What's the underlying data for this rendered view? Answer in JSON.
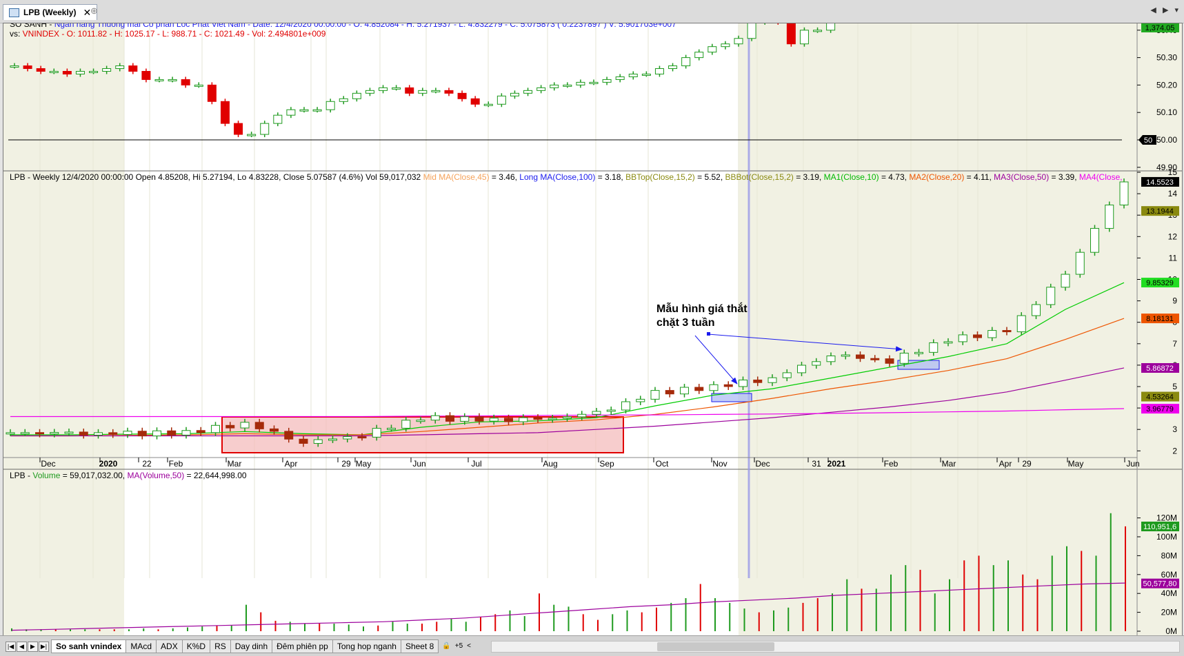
{
  "app": {
    "tab_title": "LPB (Weekly)",
    "tab_close": "✕",
    "pin_glyph": "⊕",
    "nav_left": "◀",
    "nav_right": "▶",
    "nav_menu": "▾"
  },
  "top_panel": {
    "line1_prefix": "SO SANH - ",
    "line1_rest": "Ngan hang Thuong mai Co phan Loc Phat Viet Nam - Date: 12/4/2020 00:00:00 - O: 4.852084 - H: 5.271937 - L: 4.832279 - C: 5.075873 ( 0.2237897 ) V: 5.901703e+007",
    "line2_prefix": "vs: ",
    "line2_rest": "VNINDEX - O: 1011.82 - H: 1025.17 - L: 988.71 - C: 1021.49 - Vol: 2.494801e+009",
    "axis_ticks": [
      "50.40",
      "50.30",
      "50.20",
      "50.10",
      "50.00",
      "49.90"
    ],
    "badge_last": "1,374.05",
    "badge_ref": "50",
    "colors": {
      "up": "#1e9a1e",
      "down": "#e00000",
      "label_blue": "#1a1aee",
      "label_red": "#e00000"
    }
  },
  "price_panel": {
    "legend": [
      {
        "text": "LPB - Weekly 12/4/2020 00:00:00 Open 4.85208, Hi 5.27194, Lo 4.83228, Close 5.07587 (4.6%) Vol 59,017,032 ",
        "color": "#000000"
      },
      {
        "text": "Mid MA(Close,45)",
        "color": "#f5a25a"
      },
      {
        "text": " = 3.46, ",
        "color": "#000000"
      },
      {
        "text": "Long MA(Close,100)",
        "color": "#1a1aee"
      },
      {
        "text": " = 3.18, ",
        "color": "#000000"
      },
      {
        "text": "BBTop(Close,15,2)",
        "color": "#8a8a10"
      },
      {
        "text": " = 5.52, ",
        "color": "#000000"
      },
      {
        "text": "BBBot(Close,15,2)",
        "color": "#8a8a10"
      },
      {
        "text": " = 3.19, ",
        "color": "#000000"
      },
      {
        "text": "MA1(Close,10)",
        "color": "#00b800"
      },
      {
        "text": " = 4.73, ",
        "color": "#000000"
      },
      {
        "text": "MA2(Close,20)",
        "color": "#ee5500"
      },
      {
        "text": " = 4.11, ",
        "color": "#000000"
      },
      {
        "text": "MA3(Close,50)",
        "color": "#9c009c"
      },
      {
        "text": " = 3.39, ",
        "color": "#000000"
      },
      {
        "text": "MA4(Close,",
        "color": "#ee00ee"
      }
    ],
    "axis_ticks": [
      "15",
      "14",
      "13",
      "12",
      "11",
      "10",
      "9",
      "8",
      "7",
      "6",
      "5",
      "4",
      "3",
      "2"
    ],
    "badges": [
      {
        "value": "14.5523",
        "bg": "#000000",
        "fg": "#ffffff",
        "y": 14.5523
      },
      {
        "value": "13.1944",
        "bg": "#8a8a10",
        "fg": "#000000",
        "y": 13.1944
      },
      {
        "value": "9.85329",
        "bg": "#22dd22",
        "fg": "#000000",
        "y": 9.85329
      },
      {
        "value": "8.18131",
        "bg": "#ee5500",
        "fg": "#000000",
        "y": 8.18131
      },
      {
        "value": "5.86872",
        "bg": "#9c009c",
        "fg": "#ffffff",
        "y": 5.86872
      },
      {
        "value": "4.53264",
        "bg": "#8a8a10",
        "fg": "#000000",
        "y": 4.53264
      },
      {
        "value": "3.96779",
        "bg": "#ee00ee",
        "fg": "#000000",
        "y": 3.96779
      }
    ],
    "annotation": [
      "Mẫu hình giá thắt",
      "chặt 3 tuần"
    ],
    "x_labels": [
      "Dec",
      "2020",
      "22",
      "Feb",
      "Mar",
      "Apr",
      "29",
      "May",
      "Jun",
      "Jul",
      "Aug",
      "Sep",
      "Oct",
      "Nov",
      "Dec",
      "31",
      "2021",
      "Feb",
      "Mar",
      "Apr",
      "29",
      "May",
      "Jun"
    ]
  },
  "volume_panel": {
    "legend": [
      {
        "text": "LPB - ",
        "color": "#000000"
      },
      {
        "text": "Volume",
        "color": "#1e9a1e"
      },
      {
        "text": " = 59,017,032.00, ",
        "color": "#000000"
      },
      {
        "text": "MA(Volume,50)",
        "color": "#9c009c"
      },
      {
        "text": " = 22,644,998.00",
        "color": "#000000"
      }
    ],
    "axis_ticks": [
      "120M",
      "100M",
      "80M",
      "60M",
      "40M",
      "20M",
      "0M"
    ],
    "badges": [
      {
        "value": "110,951,6",
        "bg": "#1e9a1e",
        "fg": "#ffffff",
        "y": 110.95
      },
      {
        "value": "50,577,80",
        "bg": "#9c009c",
        "fg": "#ffffff",
        "y": 50.58
      }
    ]
  },
  "bottom": {
    "nav": [
      "|◀",
      "◀",
      "▶",
      "▶|"
    ],
    "tabs": [
      "So sanh vnindex",
      "MAcd",
      "ADX",
      "K%D",
      "RS",
      "Day dinh",
      "Đêm phiên pp",
      "Tong hop nganh",
      "Sheet 8"
    ],
    "lock": "🔒",
    "add": "+5",
    "scroll_left": "<"
  },
  "chart_data": [
    {
      "type": "line",
      "title": "",
      "series": [
        {
          "name": "SO SANH",
          "values": [
            50.27,
            50.26,
            50.25,
            50.25,
            50.24,
            50.25,
            50.25,
            50.26,
            50.27,
            50.25,
            50.22,
            50.22,
            50.22,
            50.2,
            50.2,
            50.14,
            50.06,
            50.02,
            50.02,
            50.06,
            50.09,
            50.11,
            50.11,
            50.11,
            50.14,
            50.15,
            50.17,
            50.18,
            50.19,
            50.19,
            50.17,
            50.18,
            50.18,
            50.17,
            50.15,
            50.13,
            50.13,
            50.16,
            50.17,
            50.18,
            50.19,
            50.2,
            50.2,
            50.21,
            50.21,
            50.22,
            50.23,
            50.24,
            50.24,
            50.26,
            50.27,
            50.3,
            50.32,
            50.34,
            50.35,
            50.37,
            50.43,
            50.46,
            50.43,
            50.35,
            50.4,
            50.4,
            50.44,
            50.45,
            50.46,
            50.45,
            50.45,
            50.46,
            50.45,
            50.48,
            50.5,
            50.51,
            50.51,
            50.5,
            50.5,
            50.51,
            50.52
          ]
        }
      ],
      "ylim": [
        49.87,
        50.52
      ]
    },
    {
      "type": "line",
      "title": "",
      "x": [
        "2019-11",
        "2019-12",
        "2020-01",
        "2020-02",
        "2020-03",
        "2020-04",
        "2020-05",
        "2020-06",
        "2020-07",
        "2020-08",
        "2020-09",
        "2020-10",
        "2020-11",
        "2020-12",
        "2021-01",
        "2021-02",
        "2021-03",
        "2021-04",
        "2021-05",
        "2021-06"
      ],
      "series": [
        {
          "name": "LPB",
          "values": [
            2.85,
            2.8,
            2.8,
            2.85,
            3.3,
            2.4,
            2.75,
            3.55,
            3.45,
            3.45,
            3.75,
            4.7,
            5.0,
            5.4,
            6.5,
            6.2,
            7.2,
            7.6,
            10.2,
            14.55
          ]
        },
        {
          "name": "MA1(Close,10)",
          "values": [
            2.75,
            2.75,
            2.78,
            2.8,
            2.9,
            2.8,
            2.75,
            3.1,
            3.35,
            3.4,
            3.55,
            4.1,
            4.6,
            4.9,
            5.4,
            5.9,
            6.4,
            7.0,
            8.6,
            9.85
          ]
        },
        {
          "name": "MA2(Close,20)",
          "values": [
            2.7,
            2.7,
            2.72,
            2.75,
            2.8,
            2.75,
            2.75,
            2.9,
            3.1,
            3.3,
            3.45,
            3.7,
            4.05,
            4.45,
            4.9,
            5.3,
            5.75,
            6.3,
            7.2,
            8.18
          ]
        },
        {
          "name": "MA3(Close,50)",
          "values": [
            2.7,
            2.7,
            2.7,
            2.7,
            2.7,
            2.7,
            2.7,
            2.75,
            2.8,
            2.85,
            3.0,
            3.15,
            3.35,
            3.55,
            3.8,
            4.05,
            4.35,
            4.75,
            5.3,
            5.87
          ]
        },
        {
          "name": "MA4(Close,",
          "values": [
            3.6,
            3.6,
            3.6,
            3.6,
            3.6,
            3.6,
            3.6,
            3.62,
            3.63,
            3.65,
            3.67,
            3.68,
            3.7,
            3.72,
            3.75,
            3.78,
            3.82,
            3.86,
            3.92,
            3.97
          ]
        }
      ],
      "ylim": [
        1.6,
        15.3
      ]
    },
    {
      "type": "bar",
      "title": "",
      "series": [
        {
          "name": "Volume",
          "values": [
            3,
            2,
            2,
            2,
            2,
            2,
            2,
            2,
            2,
            3,
            2,
            3,
            4,
            5,
            6,
            6,
            28,
            20,
            11,
            10,
            8,
            8,
            8,
            7,
            5,
            6,
            10,
            8,
            8,
            10,
            13,
            10,
            15,
            18,
            22,
            16,
            40,
            28,
            26,
            18,
            12,
            18,
            22,
            20,
            25,
            30,
            35,
            50,
            35,
            30,
            24,
            20,
            22,
            25,
            30,
            35,
            40,
            55,
            45,
            45,
            60,
            70,
            65,
            40,
            55,
            75,
            80,
            70,
            75,
            60,
            55,
            80,
            90,
            85,
            80,
            125,
            111
          ]
        },
        {
          "name": "MA(Volume,50)",
          "values": [
            1,
            2,
            3,
            4,
            5,
            6,
            7,
            8,
            9,
            10,
            12,
            14,
            17,
            20,
            23,
            26,
            28,
            31,
            33,
            35,
            38,
            40,
            42,
            44,
            46,
            48,
            50,
            51
          ]
        }
      ],
      "ylim": [
        0,
        125
      ]
    }
  ]
}
